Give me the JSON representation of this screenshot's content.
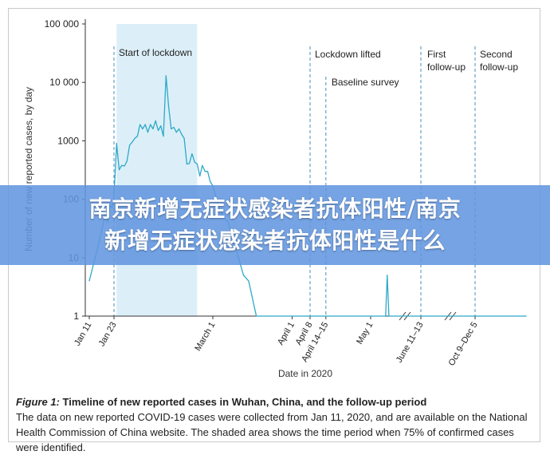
{
  "banner": {
    "line1": "南京新增无症状感染者抗体阳性/南京",
    "line2": "新增无症状感染者抗体阳性是什么"
  },
  "caption": {
    "figure_label": "Figure 1:",
    "title": "Timeline of new reported cases in Wuhan, China, and the follow-up period",
    "text": "The data on new reported COVID-19 cases were collected from Jan 11, 2020, and are available on the National Health Commission of China website. The shaded area shows the time period when 75% of confirmed cases were identified."
  },
  "colors": {
    "series": "#2ea8c8",
    "shade": "#dceff8",
    "event_line": "#4a8fb5",
    "axis": "#333333"
  },
  "chart_data": {
    "type": "line",
    "xlabel": "Date in 2020",
    "ylabel": "Number of new reported cases, by day",
    "yscale": "log",
    "ylim": [
      1,
      100000
    ],
    "y_ticks": [
      {
        "label": "100 000",
        "value": 100000
      },
      {
        "label": "10 000",
        "value": 10000
      },
      {
        "label": "1000",
        "value": 1000
      },
      {
        "label": "100",
        "value": 100
      },
      {
        "label": "10",
        "value": 10
      },
      {
        "label": "1",
        "value": 1
      }
    ],
    "x_ticks": [
      "Jan 11",
      "Jan 23",
      "March 1",
      "April 1",
      "April 8",
      "April 14–15",
      "May 1",
      "June 11–13",
      "Oct 9–Dec 5"
    ],
    "axis_breaks": [
      "after May",
      "after June 11–13"
    ],
    "shaded_period": {
      "from": "Jan 24",
      "to": "Feb 24",
      "meaning": "75% of confirmed cases identified"
    },
    "events": [
      {
        "label": "Start of lockdown",
        "at": "Jan 23"
      },
      {
        "label": "Lockdown lifted",
        "at": "April 8"
      },
      {
        "label": "Baseline survey",
        "at": "April 14–15"
      },
      {
        "label": "First follow-up",
        "at": "June 11–13"
      },
      {
        "label": "Second follow-up",
        "at": "Oct 9–Dec 5"
      }
    ],
    "series": [
      {
        "x": [
          "Jan 11",
          "Jan 16",
          "Jan 19",
          "Jan 20",
          "Jan 21",
          "Jan 22",
          "Jan 23",
          "Jan 24",
          "Jan 25",
          "Jan 26",
          "Jan 27",
          "Jan 28",
          "Jan 29",
          "Jan 30",
          "Jan 31",
          "Feb 1",
          "Feb 2",
          "Feb 3",
          "Feb 4",
          "Feb 5",
          "Feb 6",
          "Feb 7",
          "Feb 8",
          "Feb 9",
          "Feb 10",
          "Feb 11",
          "Feb 12",
          "Feb 13",
          "Feb 14",
          "Feb 15",
          "Feb 16",
          "Feb 17",
          "Feb 18",
          "Feb 19",
          "Feb 20",
          "Feb 21",
          "Feb 22",
          "Feb 23",
          "Feb 24",
          "Feb 25",
          "Feb 26",
          "Feb 27",
          "Feb 28",
          "Feb 29",
          "March 1",
          "March 2",
          "March 3",
          "March 5",
          "March 7",
          "March 9",
          "March 11",
          "March 13",
          "March 15",
          "March 18",
          "April 1",
          "April 15",
          "May 1",
          "May 10",
          "May 11",
          "May 12",
          "May 13",
          "Dec 5"
        ],
        "y": [
          4,
          20,
          60,
          40,
          80,
          70,
          110,
          900,
          320,
          380,
          370,
          450,
          840,
          950,
          1100,
          1200,
          1900,
          1600,
          1900,
          1400,
          1900,
          1600,
          2200,
          1500,
          1800,
          1200,
          13000,
          3900,
          1600,
          1700,
          1400,
          1600,
          1300,
          1100,
          400,
          410,
          600,
          430,
          400,
          250,
          380,
          300,
          300,
          200,
          170,
          120,
          80,
          50,
          40,
          20,
          10,
          5,
          4,
          1,
          1,
          1,
          1,
          1,
          5,
          1,
          1,
          1
        ]
      }
    ]
  }
}
